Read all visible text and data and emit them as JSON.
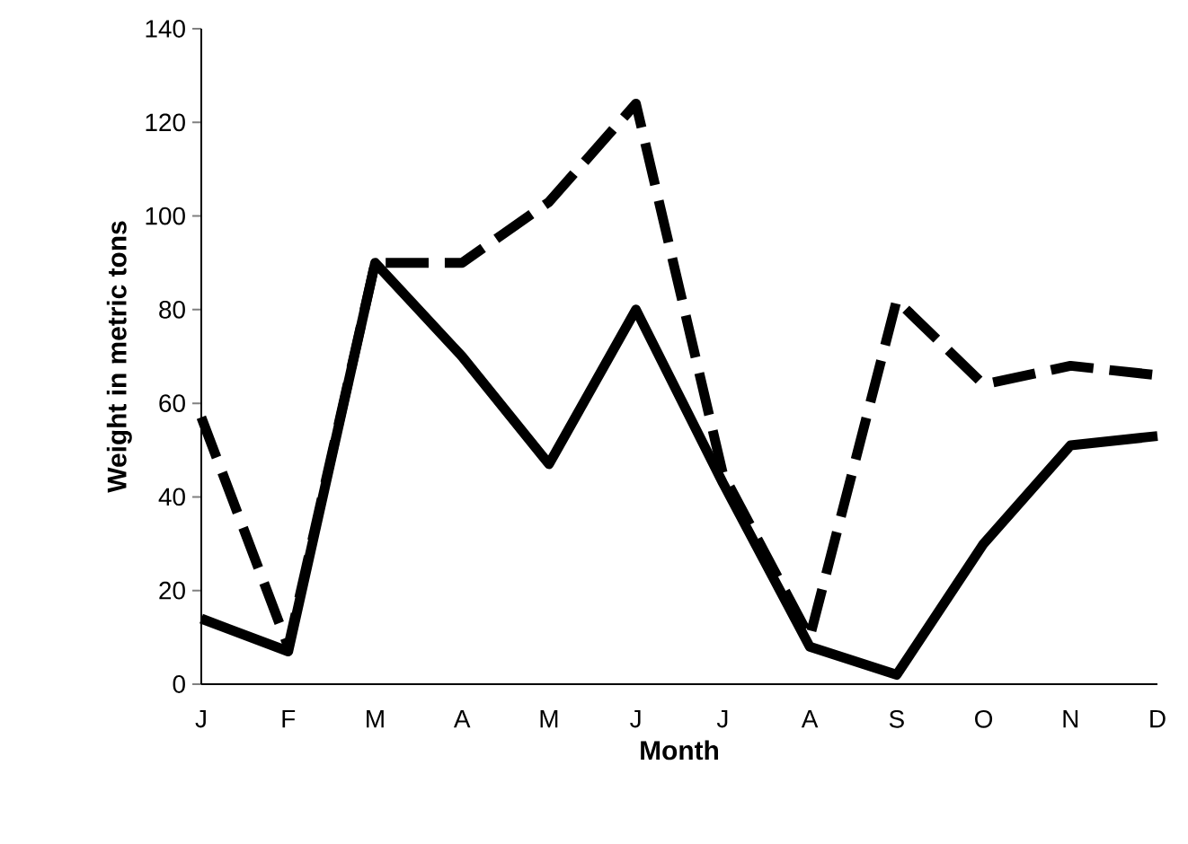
{
  "chart_data": {
    "type": "line",
    "xlabel": "Month",
    "ylabel": "Weight in metric tons",
    "categories": [
      "J",
      "F",
      "M",
      "A",
      "M",
      "J",
      "J",
      "A",
      "S",
      "O",
      "N",
      "D"
    ],
    "series": [
      {
        "color": "#000000",
        "line_style": "solid",
        "values": [
          14,
          7,
          90,
          70,
          47,
          80,
          43,
          8,
          2,
          30,
          51,
          53
        ]
      },
      {
        "color": "#000000",
        "line_style": "dashed",
        "values": [
          57,
          8,
          90,
          90,
          103,
          124,
          45,
          10,
          82,
          64,
          68,
          66
        ]
      }
    ],
    "ylim": [
      0,
      140
    ],
    "yticks": [
      0,
      20,
      40,
      60,
      80,
      100,
      120,
      140
    ]
  }
}
